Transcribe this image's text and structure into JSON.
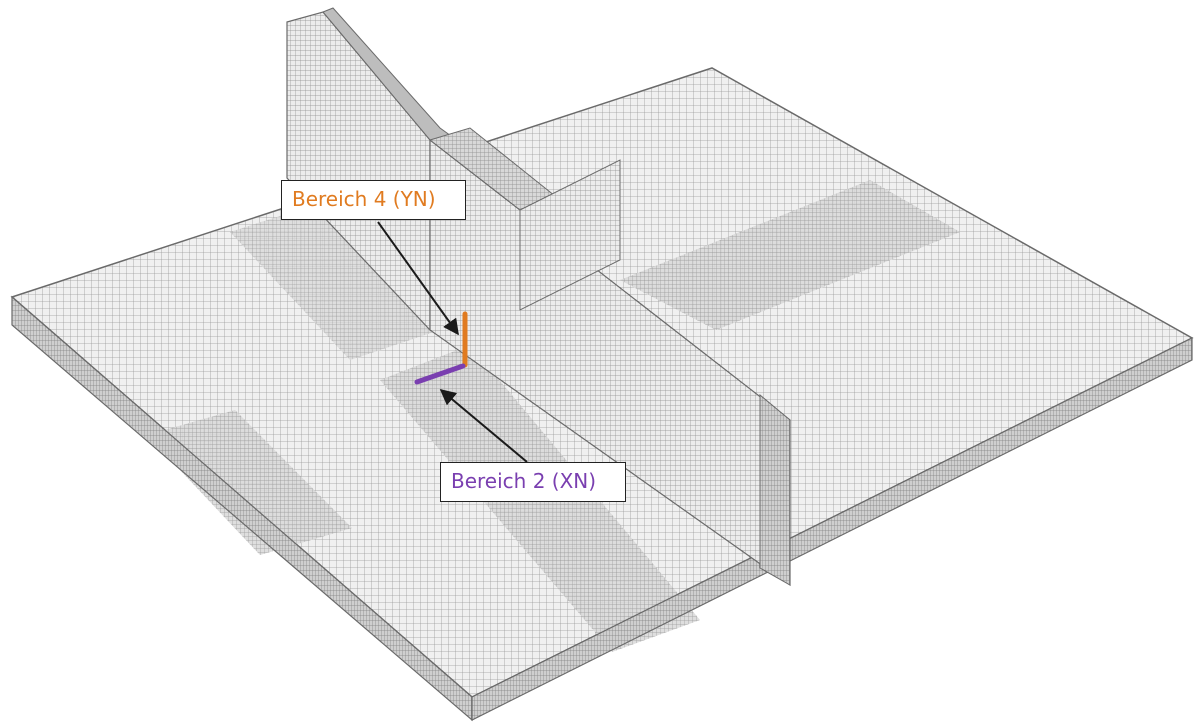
{
  "labels": {
    "region_4": "Bereich 4 (YN)",
    "region_2": "Bereich 2 (XN)"
  },
  "colors": {
    "region_4": "#e07b20",
    "region_2": "#7a3fb0",
    "mesh_fill": "#f0f0f0",
    "mesh_line": "#8f8f8f",
    "dense_fill": "#cfcfcf",
    "side_fill": "#c4c4c4",
    "outline": "#6a6a6a",
    "arrow": "#1a1a1a"
  },
  "icons": {
    "arrow": "black-arrow-icon"
  }
}
